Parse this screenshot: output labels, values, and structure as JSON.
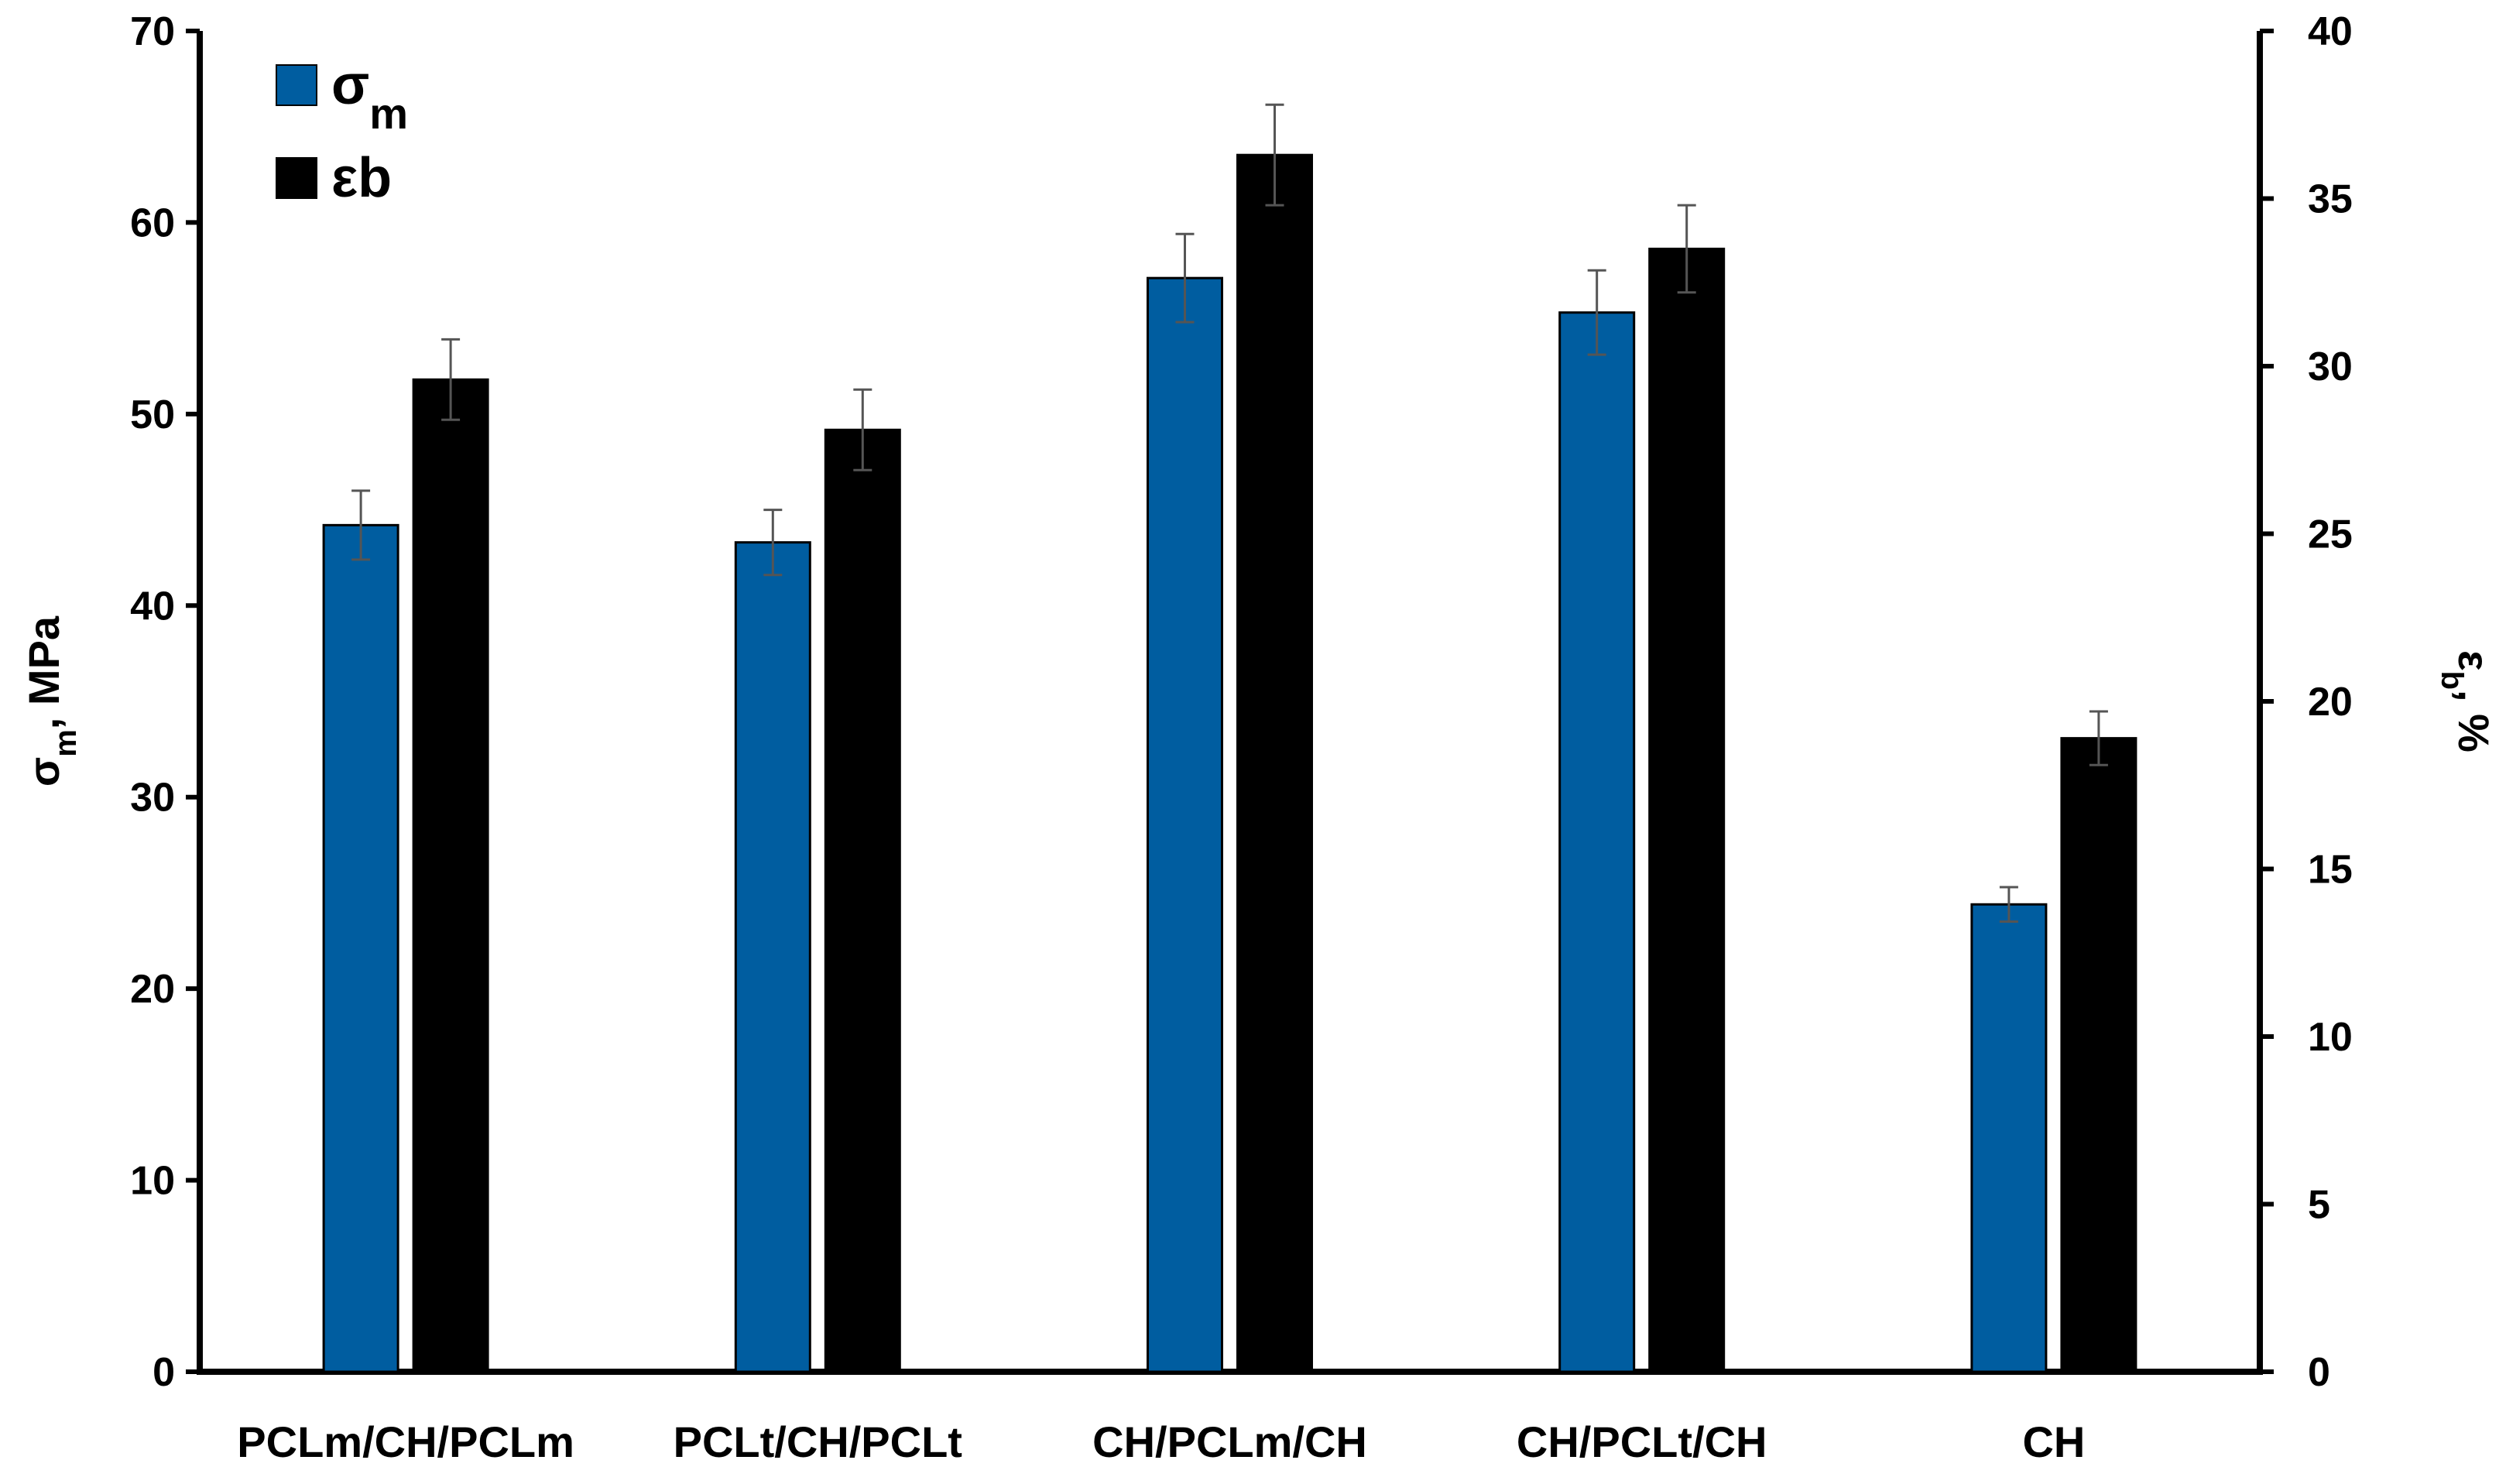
{
  "chart_data": {
    "type": "bar",
    "categories": [
      "PCLm/CH/PCLm",
      "PCLt/CH/PCLt",
      "CH/PCLm/CH",
      "CH/PCLt/CH",
      "CH"
    ],
    "series": [
      {
        "name": "σm",
        "axis": "left",
        "color": "#005DA0",
        "values": [
          44.2,
          43.3,
          57.1,
          55.3,
          24.4
        ],
        "errors": [
          1.8,
          1.7,
          2.3,
          2.2,
          0.9
        ]
      },
      {
        "name": "εb",
        "axis": "right",
        "color": "#000000",
        "values": [
          29.6,
          28.1,
          36.3,
          33.5,
          18.9
        ],
        "errors": [
          1.2,
          1.2,
          1.5,
          1.3,
          0.8
        ]
      }
    ],
    "ylabel_left": {
      "main": "σ",
      "sub": "m",
      "rest": ", MPa"
    },
    "ylabel_right": {
      "main": "ε",
      "sub": "b",
      "rest": ", %"
    },
    "ylim_left": [
      0,
      70
    ],
    "ylim_right": [
      0,
      40
    ],
    "yticks_left": [
      "0",
      "10",
      "20",
      "30",
      "40",
      "50",
      "60",
      "70"
    ],
    "yticks_right": [
      "0",
      "5",
      "10",
      "15",
      "20",
      "25",
      "30",
      "35",
      "40"
    ],
    "legend": {
      "position": "top-left",
      "entries": [
        {
          "main": "σ",
          "sub": "m",
          "color": "#005DA0"
        },
        {
          "main": "εb",
          "sub": "",
          "color": "#000000"
        }
      ]
    },
    "grid": false
  }
}
